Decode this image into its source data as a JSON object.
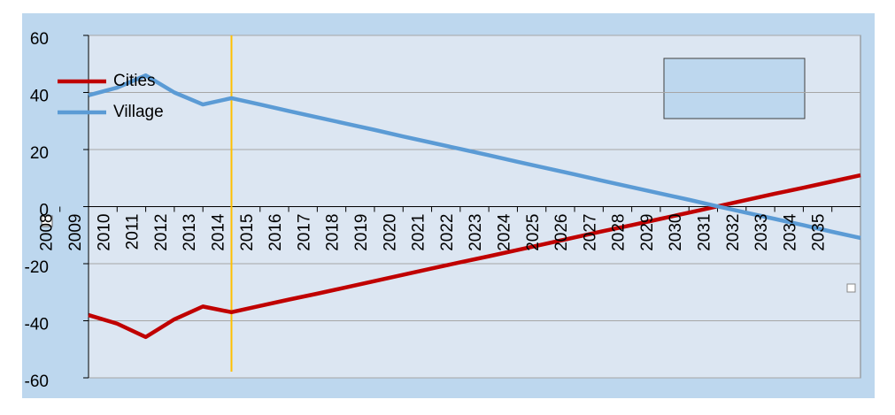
{
  "chart_data": {
    "type": "line",
    "x": [
      2009,
      2010,
      2011,
      2012,
      2013,
      2014,
      2015,
      2016,
      2017,
      2018,
      2019,
      2020,
      2021,
      2022,
      2023,
      2024,
      2025,
      2026,
      2027,
      2028,
      2029,
      2030,
      2031,
      2032,
      2033,
      2034,
      2035,
      2036
    ],
    "xlim": [
      2009,
      2036
    ],
    "xticks": [
      2008,
      2009,
      2010,
      2011,
      2012,
      2013,
      2014,
      2015,
      2016,
      2017,
      2018,
      2019,
      2020,
      2021,
      2022,
      2023,
      2024,
      2025,
      2026,
      2027,
      2028,
      2029,
      2030,
      2031,
      2032,
      2033,
      2034,
      2035
    ],
    "ylim": [
      -60,
      60
    ],
    "yticks": [
      -60,
      -40,
      -20,
      0,
      20,
      40,
      60
    ],
    "grid": true,
    "marker_line_x": 2014,
    "marker_line_color": "#ffc000",
    "legend": "top-left",
    "series": [
      {
        "name": "Cities",
        "color": "#c00000",
        "values": [
          -38,
          -41,
          -45.7,
          -39.5,
          -35,
          -37,
          -34.8,
          -32.6,
          -30.5,
          -28.3,
          -26.1,
          -23.9,
          -21.7,
          -19.5,
          -17.4,
          -15.2,
          -13,
          -10.8,
          -8.6,
          -6.5,
          -4.3,
          -2.1,
          0.1,
          2.3,
          4.5,
          6.6,
          8.8,
          11
        ]
      },
      {
        "name": "Village",
        "color": "#5b9bd5",
        "values": [
          39,
          41.7,
          46,
          40,
          35.8,
          38,
          35.8,
          33.5,
          31.3,
          29.1,
          26.9,
          24.6,
          22.4,
          20.2,
          18,
          15.7,
          13.5,
          11.3,
          9,
          6.8,
          4.6,
          2.4,
          0.1,
          -2.1,
          -4.3,
          -6.5,
          -8.8,
          -11
        ]
      }
    ]
  }
}
